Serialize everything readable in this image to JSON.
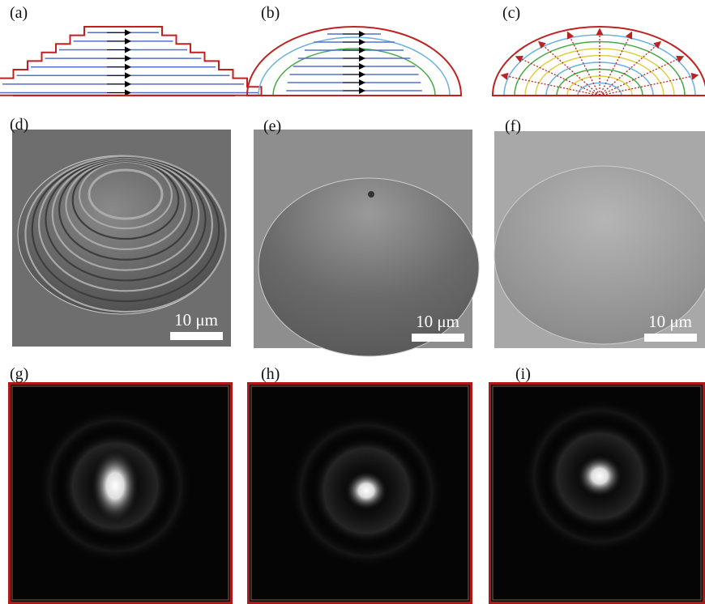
{
  "panels": [
    {
      "label": "(a)"
    },
    {
      "label": "(b)"
    },
    {
      "label": "(c)"
    },
    {
      "label": "(d)",
      "scale_bar": "10 μm"
    },
    {
      "label": "(e)",
      "scale_bar": "10 μm"
    },
    {
      "label": "(f)",
      "scale_bar": "10 μm"
    },
    {
      "label": "(g)"
    },
    {
      "label": "(h)"
    },
    {
      "label": "(i)"
    }
  ]
}
